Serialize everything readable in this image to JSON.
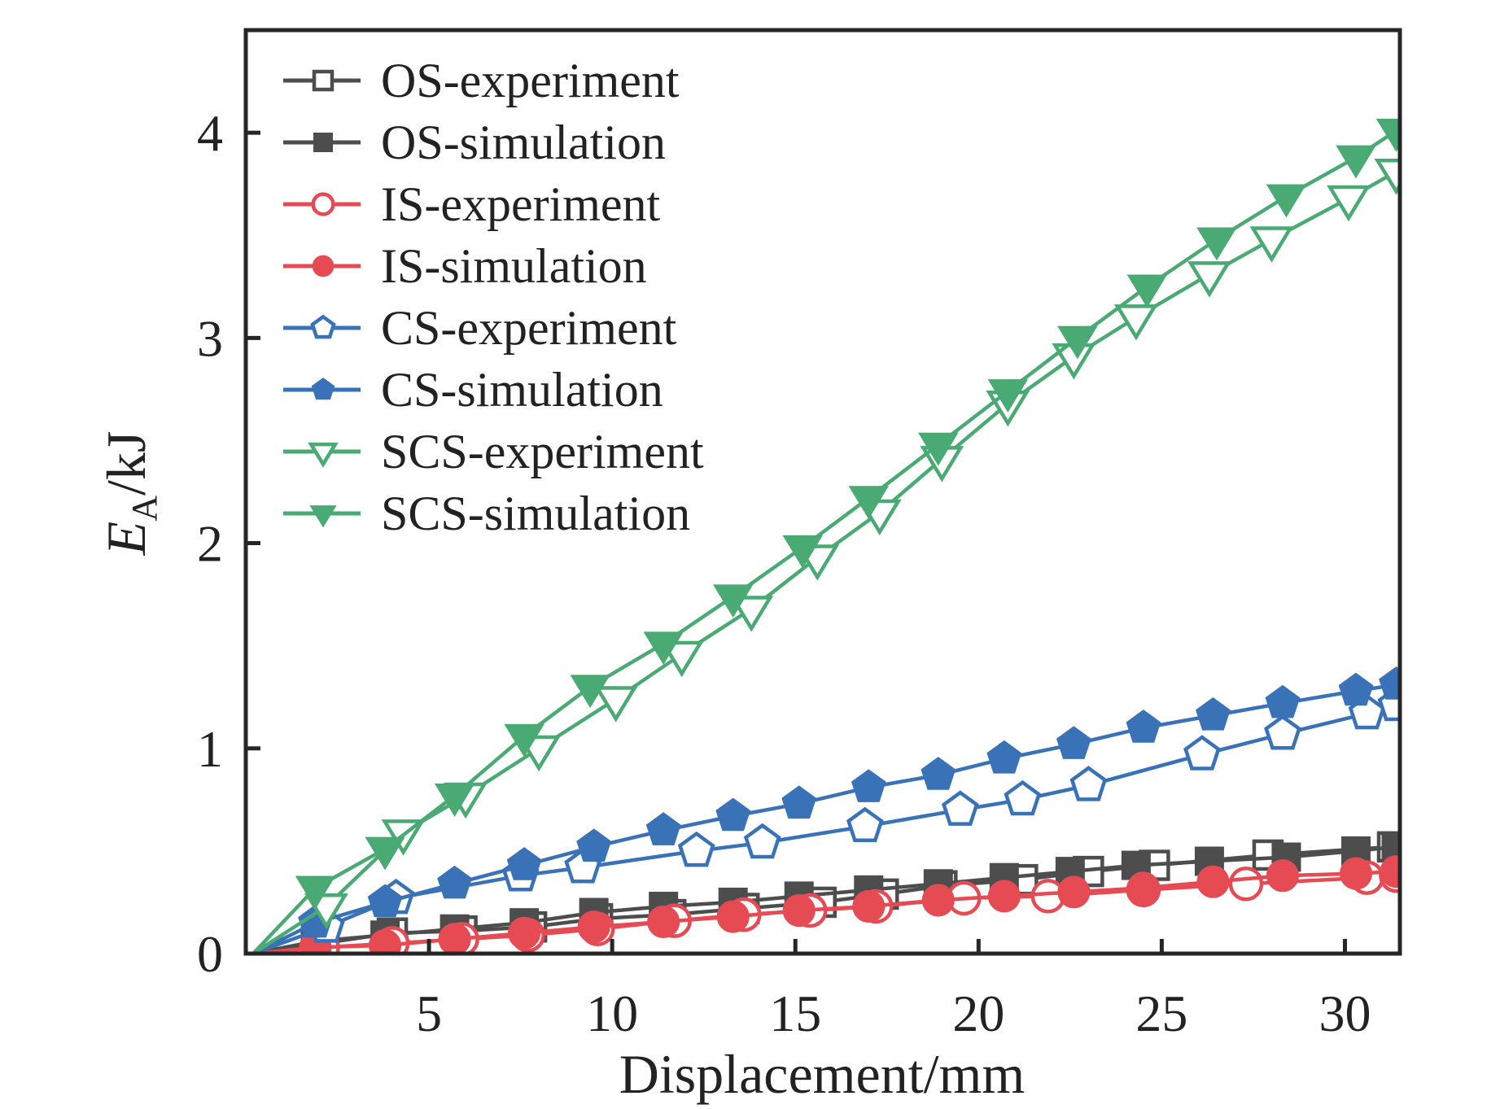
{
  "chart_data": {
    "type": "line",
    "title": "",
    "xlabel": "Displacement/mm",
    "ylabel": {
      "main": "E",
      "subscript": "A",
      "unit": "/kJ"
    },
    "xlim": [
      0,
      31.5
    ],
    "ylim": [
      0,
      4.5
    ],
    "xticks": [
      5,
      10,
      15,
      20,
      25,
      30
    ],
    "yticks": [
      0,
      1,
      2,
      3,
      4
    ],
    "grid": false,
    "legend_position": "top-left",
    "series": [
      {
        "name": "OS-experiment",
        "color": "#4d4d4d",
        "marker": "square",
        "filled": false,
        "points": [
          [
            0.2,
            0
          ],
          [
            2.1,
            0.05
          ],
          [
            4.0,
            0.1
          ],
          [
            5.9,
            0.11
          ],
          [
            7.8,
            0.13
          ],
          [
            9.6,
            0.17
          ],
          [
            11.6,
            0.19
          ],
          [
            13.6,
            0.22
          ],
          [
            15.7,
            0.25
          ],
          [
            17.4,
            0.29
          ],
          [
            19.0,
            0.33
          ],
          [
            21.2,
            0.36
          ],
          [
            23.0,
            0.4
          ],
          [
            24.8,
            0.43
          ],
          [
            27.9,
            0.48
          ],
          [
            31.3,
            0.52
          ]
        ]
      },
      {
        "name": "OS-simulation",
        "color": "#4d4d4d",
        "marker": "square",
        "filled": true,
        "points": [
          [
            0.2,
            0
          ],
          [
            1.9,
            0.06
          ],
          [
            3.8,
            0.09
          ],
          [
            5.7,
            0.12
          ],
          [
            7.6,
            0.15
          ],
          [
            9.5,
            0.2
          ],
          [
            11.4,
            0.23
          ],
          [
            13.3,
            0.25
          ],
          [
            15.1,
            0.28
          ],
          [
            17.0,
            0.31
          ],
          [
            18.9,
            0.34
          ],
          [
            20.7,
            0.37
          ],
          [
            22.5,
            0.4
          ],
          [
            24.3,
            0.43
          ],
          [
            26.3,
            0.45
          ],
          [
            28.4,
            0.47
          ],
          [
            30.3,
            0.5
          ],
          [
            31.4,
            0.52
          ]
        ]
      },
      {
        "name": "IS-experiment",
        "color": "#e64a52",
        "marker": "circle",
        "filled": false,
        "points": [
          [
            0.2,
            0
          ],
          [
            2.1,
            0.03
          ],
          [
            4.0,
            0.05
          ],
          [
            5.9,
            0.07
          ],
          [
            7.7,
            0.09
          ],
          [
            9.6,
            0.12
          ],
          [
            11.7,
            0.16
          ],
          [
            13.6,
            0.19
          ],
          [
            15.4,
            0.21
          ],
          [
            17.2,
            0.23
          ],
          [
            19.6,
            0.27
          ],
          [
            21.9,
            0.28
          ],
          [
            24.5,
            0.31
          ],
          [
            27.3,
            0.34
          ],
          [
            30.6,
            0.37
          ],
          [
            31.4,
            0.38
          ]
        ]
      },
      {
        "name": "IS-simulation",
        "color": "#e64a52",
        "marker": "circle",
        "filled": true,
        "points": [
          [
            0.2,
            0
          ],
          [
            1.9,
            0.03
          ],
          [
            3.8,
            0.04
          ],
          [
            5.7,
            0.07
          ],
          [
            7.6,
            0.1
          ],
          [
            9.5,
            0.13
          ],
          [
            11.4,
            0.155
          ],
          [
            13.3,
            0.18
          ],
          [
            15.1,
            0.21
          ],
          [
            17.0,
            0.23
          ],
          [
            18.9,
            0.26
          ],
          [
            20.7,
            0.28
          ],
          [
            22.6,
            0.3
          ],
          [
            24.5,
            0.32
          ],
          [
            26.4,
            0.35
          ],
          [
            28.3,
            0.38
          ],
          [
            30.3,
            0.39
          ],
          [
            31.4,
            0.4
          ]
        ]
      },
      {
        "name": "CS-experiment",
        "color": "#3a72b8",
        "marker": "pentagon",
        "filled": false,
        "points": [
          [
            0.2,
            0
          ],
          [
            2.2,
            0.13
          ],
          [
            4.1,
            0.27
          ],
          [
            7.5,
            0.38
          ],
          [
            9.2,
            0.42
          ],
          [
            12.3,
            0.5
          ],
          [
            14.1,
            0.54
          ],
          [
            16.9,
            0.62
          ],
          [
            19.5,
            0.7
          ],
          [
            21.2,
            0.75
          ],
          [
            23.0,
            0.82
          ],
          [
            26.1,
            0.97
          ],
          [
            28.3,
            1.07
          ],
          [
            30.6,
            1.17
          ],
          [
            31.4,
            1.21
          ]
        ]
      },
      {
        "name": "CS-simulation",
        "color": "#3a72b8",
        "marker": "pentagon",
        "filled": true,
        "points": [
          [
            0.2,
            0
          ],
          [
            1.9,
            0.15
          ],
          [
            3.8,
            0.25
          ],
          [
            5.7,
            0.34
          ],
          [
            7.6,
            0.43
          ],
          [
            9.5,
            0.52
          ],
          [
            11.4,
            0.6
          ],
          [
            13.3,
            0.67
          ],
          [
            15.1,
            0.73
          ],
          [
            17.0,
            0.81
          ],
          [
            18.9,
            0.87
          ],
          [
            20.7,
            0.95
          ],
          [
            22.6,
            1.02
          ],
          [
            24.5,
            1.1
          ],
          [
            26.4,
            1.16
          ],
          [
            28.3,
            1.22
          ],
          [
            30.3,
            1.28
          ],
          [
            31.4,
            1.31
          ]
        ]
      },
      {
        "name": "SCS-experiment",
        "color": "#4aaa74",
        "marker": "triangle-down",
        "filled": false,
        "points": [
          [
            0.2,
            0
          ],
          [
            2.2,
            0.23
          ],
          [
            4.3,
            0.59
          ],
          [
            6.0,
            0.77
          ],
          [
            8.0,
            1.0
          ],
          [
            10.1,
            1.24
          ],
          [
            11.9,
            1.46
          ],
          [
            13.8,
            1.68
          ],
          [
            15.6,
            1.93
          ],
          [
            17.3,
            2.15
          ],
          [
            19.0,
            2.41
          ],
          [
            20.8,
            2.68
          ],
          [
            22.6,
            2.91
          ],
          [
            24.3,
            3.1
          ],
          [
            26.3,
            3.31
          ],
          [
            28.0,
            3.48
          ],
          [
            30.1,
            3.68
          ],
          [
            31.4,
            3.81
          ]
        ]
      },
      {
        "name": "SCS-simulation",
        "color": "#4aaa74",
        "marker": "triangle-down",
        "filled": true,
        "points": [
          [
            0.2,
            0
          ],
          [
            1.9,
            0.32
          ],
          [
            3.8,
            0.51
          ],
          [
            5.7,
            0.77
          ],
          [
            7.6,
            1.06
          ],
          [
            9.4,
            1.3
          ],
          [
            11.4,
            1.51
          ],
          [
            13.3,
            1.74
          ],
          [
            15.2,
            1.98
          ],
          [
            17.0,
            2.22
          ],
          [
            18.9,
            2.48
          ],
          [
            20.8,
            2.74
          ],
          [
            22.7,
            3.0
          ],
          [
            24.6,
            3.25
          ],
          [
            26.5,
            3.48
          ],
          [
            28.4,
            3.69
          ],
          [
            30.3,
            3.88
          ],
          [
            31.4,
            4.01
          ]
        ]
      }
    ]
  }
}
